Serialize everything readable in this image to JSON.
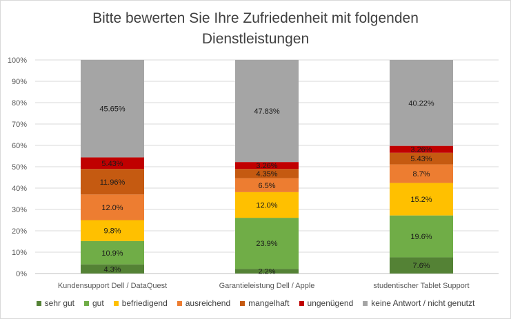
{
  "chart_data": {
    "type": "bar",
    "stacked": true,
    "title": "Bitte bewerten Sie Ihre Zufriedenheit mit folgenden Dienstleistungen",
    "title_lines": [
      "Bitte bewerten Sie Ihre Zufriedenheit mit folgenden",
      "Dienstleistungen"
    ],
    "categories": [
      "Kundensupport Dell / DataQuest",
      "Garantieleistung Dell / Apple",
      "studentischer Tablet Support"
    ],
    "ylim": [
      0,
      100
    ],
    "yticks": [
      "0%",
      "10%",
      "20%",
      "30%",
      "40%",
      "50%",
      "60%",
      "70%",
      "80%",
      "90%",
      "100%"
    ],
    "grid": true,
    "legend_position": "bottom",
    "series": [
      {
        "name": "sehr gut",
        "color": "#548235",
        "values": [
          4.3,
          2.2,
          7.6
        ],
        "labels": [
          "4.3%",
          "2.2%",
          "7.6%"
        ]
      },
      {
        "name": "gut",
        "color": "#70ad47",
        "values": [
          10.9,
          23.9,
          19.6
        ],
        "labels": [
          "10.9%",
          "23.9%",
          "19.6%"
        ]
      },
      {
        "name": "befriedigend",
        "color": "#ffc000",
        "values": [
          9.8,
          12.0,
          15.2
        ],
        "labels": [
          "9.8%",
          "12.0%",
          "15.2%"
        ]
      },
      {
        "name": "ausreichend",
        "color": "#ed7d31",
        "values": [
          12.0,
          6.5,
          8.7
        ],
        "labels": [
          "12.0%",
          "6.5%",
          "8.7%"
        ]
      },
      {
        "name": "mangelhaft",
        "color": "#c55a11",
        "values": [
          11.96,
          4.35,
          5.43
        ],
        "labels": [
          "11.96%",
          "4.35%",
          "5.43%"
        ]
      },
      {
        "name": "ungenügend",
        "color": "#c00000",
        "values": [
          5.43,
          3.26,
          3.26
        ],
        "labels": [
          "5.43%",
          "3.26%",
          "3.26%"
        ]
      },
      {
        "name": "keine Antwort / nicht genutzt",
        "color": "#a5a5a5",
        "values": [
          45.65,
          47.83,
          40.22
        ],
        "labels": [
          "45.65%",
          "47.83%",
          "40.22%"
        ]
      }
    ]
  }
}
